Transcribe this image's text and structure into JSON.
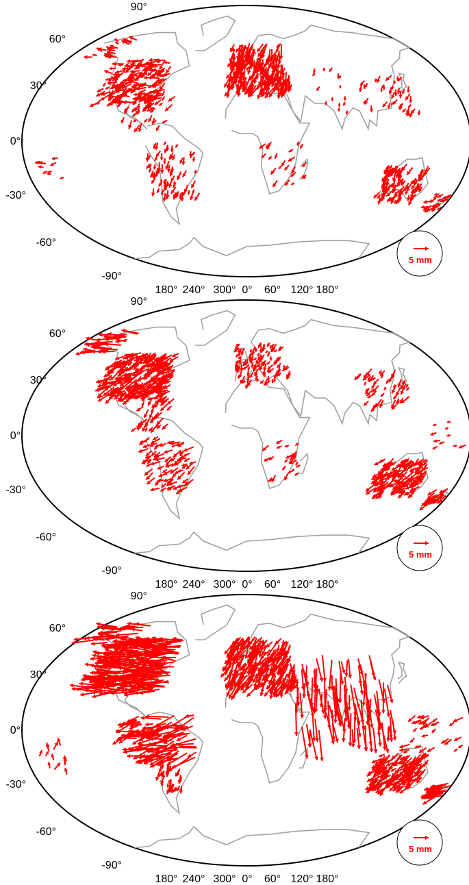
{
  "colors": {
    "vector": "#ff0000",
    "coastline": "#a0a0a0",
    "border": "#000000",
    "background": "#ffffff"
  },
  "latitude_labels": [
    "90°",
    "60°",
    "30°",
    "0°",
    "-30°",
    "-60°",
    "-90°"
  ],
  "longitude_labels": [
    "180°",
    "240°",
    "300°",
    "0°",
    "60°",
    "120°",
    "180°"
  ],
  "scale": {
    "label": "5 mm",
    "length_mm": 5
  },
  "panels": [
    {
      "id": "panel-1",
      "vector_density": "moderate",
      "dominant_regions": [
        "North America",
        "Europe",
        "Australia"
      ]
    },
    {
      "id": "panel-2",
      "vector_density": "moderate",
      "dominant_regions": [
        "North America",
        "Europe",
        "Australia"
      ]
    },
    {
      "id": "panel-3",
      "vector_density": "high",
      "dominant_regions": [
        "North America",
        "Europe",
        "Asia",
        "South America",
        "Australia"
      ]
    }
  ]
}
